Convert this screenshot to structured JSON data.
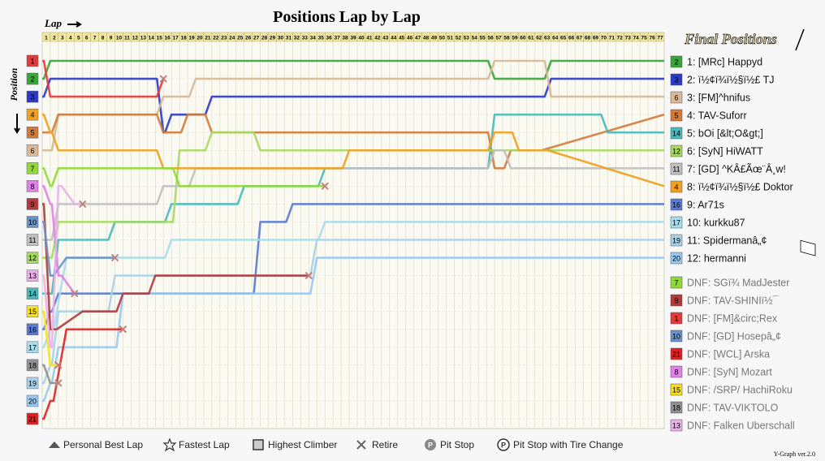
{
  "title": "Positions Lap by Lap",
  "axis": {
    "lap_label": "Lap",
    "position_label": "Position"
  },
  "final_header": "Final Positions",
  "version": "Y-Graph ver.2.0",
  "lap_ticks": [
    "1",
    "2",
    "3",
    "4",
    "5",
    "6",
    "7",
    "8",
    "9",
    "10",
    "11",
    "12",
    "13",
    "14",
    "15",
    "16",
    "17",
    "18",
    "19",
    "20",
    "21",
    "22",
    "23",
    "24",
    "25",
    "26",
    "27",
    "28",
    "29",
    "30",
    "31",
    "32",
    "33",
    "34",
    "35",
    "36",
    "37",
    "38",
    "39",
    "40",
    "41",
    "42",
    "43",
    "44",
    "45",
    "46",
    "47",
    "48",
    "49",
    "50",
    "51",
    "52",
    "53",
    "54",
    "55",
    "56",
    "57",
    "58",
    "59",
    "60",
    "61",
    "62",
    "63",
    "64",
    "65",
    "66",
    "67",
    "68",
    "69",
    "70",
    "71",
    "72",
    "73",
    "74",
    "75",
    "76",
    "77"
  ],
  "start_positions": [
    "1",
    "2",
    "3",
    "4",
    "5",
    "6",
    "7",
    "8",
    "9",
    "10",
    "11",
    "12",
    "13",
    "14",
    "15",
    "16",
    "17",
    "18",
    "19",
    "20",
    "21"
  ],
  "colors": {
    "c1": "#e03a3a",
    "c2": "#3aa33a",
    "c3": "#2b39c4",
    "c4": "#f0a020",
    "c5": "#d07a3a",
    "c6": "#d8b896",
    "c7": "#8fd838",
    "c8": "#e080e8",
    "c9": "#b03a3a",
    "c10": "#6a90c8",
    "c11": "#c0c0c0",
    "c12": "#a6d860",
    "c13": "#e8b0e8",
    "c14": "#48b8b8",
    "c15": "#f8e020",
    "c16": "#5a7ad0",
    "c17": "#a8dcea",
    "c18": "#909090",
    "c19": "#a8d0e8",
    "c20": "#98c8f0",
    "c21": "#e02020"
  },
  "final_positions": [
    {
      "grid": "2",
      "name": "1: [MRc] Happyd",
      "color": "c2"
    },
    {
      "grid": "3",
      "name": "2: ï½¢ï¾ï½§ï½£ TJ",
      "color": "c3"
    },
    {
      "grid": "6",
      "name": "3: [FM]^hnifus",
      "color": "c6"
    },
    {
      "grid": "5",
      "name": "4: TAV-Suforr",
      "color": "c5"
    },
    {
      "grid": "14",
      "name": "5: bOi [&lt;O&gt;]",
      "color": "c14"
    },
    {
      "grid": "12",
      "name": "6: [SyN] HiWATT",
      "color": "c12"
    },
    {
      "grid": "11",
      "name": "7: [GD] ^KÂ£Ãœ¨Â¸w!",
      "color": "c11"
    },
    {
      "grid": "4",
      "name": "8: ï½¢ï¾ï½§ï½£ Doktor",
      "color": "c4"
    },
    {
      "grid": "16",
      "name": "9: Ar71s",
      "color": "c16"
    },
    {
      "grid": "17",
      "name": "10: kurkku87",
      "color": "c17"
    },
    {
      "grid": "19",
      "name": "11: Spidermanâ„¢",
      "color": "c19"
    },
    {
      "grid": "20",
      "name": "12: hermanni",
      "color": "c20"
    }
  ],
  "dnf": [
    {
      "grid": "7",
      "name": "DNF: SGï¾ MadJester",
      "color": "c7"
    },
    {
      "grid": "9",
      "name": "DNF: TAV-SHINIï½¯",
      "color": "c9"
    },
    {
      "grid": "1",
      "name": "DNF: [FM]&circ;Rex",
      "color": "c1"
    },
    {
      "grid": "10",
      "name": "DNF: [GD] Hosepâ„¢",
      "color": "c10"
    },
    {
      "grid": "21",
      "name": "DNF: [WCL] Arska",
      "color": "c21"
    },
    {
      "grid": "8",
      "name": "DNF: [SyN] Mozart",
      "color": "c8"
    },
    {
      "grid": "15",
      "name": "DNF: /SRP/ HachiRoku",
      "color": "c15"
    },
    {
      "grid": "18",
      "name": "DNF: TAV-VIKTOLO",
      "color": "c18"
    },
    {
      "grid": "13",
      "name": "DNF: Falken Uberschall",
      "color": "c13"
    }
  ],
  "legend": [
    {
      "icon": "triangle-icon",
      "label": "Personal Best Lap"
    },
    {
      "icon": "star-icon",
      "label": "Fastest Lap"
    },
    {
      "icon": "square-icon",
      "label": "Highest Climber"
    },
    {
      "icon": "x-icon",
      "label": "Retire"
    },
    {
      "icon": "p-icon",
      "label": "Pit Stop"
    },
    {
      "icon": "p-ring-icon",
      "label": "Pit Stop with Tire Change"
    }
  ],
  "chart_data": {
    "type": "line",
    "title": "Positions Lap by Lap",
    "xlabel": "Lap",
    "ylabel": "Position",
    "xlim": [
      0,
      77
    ],
    "ylim": [
      1,
      21
    ],
    "grid": true,
    "series": [
      {
        "name": "[MRc] Happyd",
        "color": "c2",
        "points": [
          [
            0,
            2
          ],
          [
            1,
            1
          ],
          [
            55,
            1
          ],
          [
            56,
            2
          ],
          [
            62,
            2
          ],
          [
            63,
            1
          ],
          [
            77,
            1
          ]
        ]
      },
      {
        "name": "ï½¢ï¾ï½§ï½£ TJ",
        "color": "c3",
        "points": [
          [
            0,
            3
          ],
          [
            1,
            2
          ],
          [
            14,
            2
          ],
          [
            15,
            5
          ],
          [
            16,
            4
          ],
          [
            20,
            4
          ],
          [
            21,
            3
          ],
          [
            62,
            3
          ],
          [
            63,
            2
          ],
          [
            77,
            2
          ]
        ]
      },
      {
        "name": "[FM]^hnifus",
        "color": "c6",
        "points": [
          [
            0,
            6
          ],
          [
            1,
            6
          ],
          [
            2,
            4
          ],
          [
            14,
            4
          ],
          [
            15,
            3
          ],
          [
            18,
            3
          ],
          [
            19,
            2
          ],
          [
            55,
            2
          ],
          [
            56,
            1
          ],
          [
            62,
            1
          ],
          [
            63,
            3
          ],
          [
            77,
            3
          ]
        ]
      },
      {
        "name": "TAV-Suforr",
        "color": "c5",
        "points": [
          [
            0,
            5
          ],
          [
            1,
            5
          ],
          [
            2,
            4
          ],
          [
            14,
            4
          ],
          [
            15,
            5
          ],
          [
            17,
            5
          ],
          [
            18,
            4
          ],
          [
            20,
            4
          ],
          [
            21,
            5
          ],
          [
            55,
            5
          ],
          [
            56,
            7
          ],
          [
            57,
            7
          ],
          [
            58,
            6
          ],
          [
            77,
            4
          ]
        ]
      },
      {
        "name": "bOi [&lt;O&gt;]",
        "color": "c14",
        "points": [
          [
            0,
            14
          ],
          [
            1,
            14
          ],
          [
            2,
            11
          ],
          [
            8,
            11
          ],
          [
            9,
            10
          ],
          [
            15,
            10
          ],
          [
            16,
            9
          ],
          [
            24,
            9
          ],
          [
            25,
            8
          ],
          [
            34,
            8
          ],
          [
            35,
            7
          ],
          [
            55,
            7
          ],
          [
            56,
            4
          ],
          [
            69,
            4
          ],
          [
            70,
            5
          ],
          [
            77,
            5
          ]
        ]
      },
      {
        "name": "[SyN] HiWATT",
        "color": "c12",
        "points": [
          [
            0,
            12
          ],
          [
            1,
            12
          ],
          [
            2,
            10
          ],
          [
            16,
            10
          ],
          [
            17,
            6
          ],
          [
            20,
            6
          ],
          [
            21,
            5
          ],
          [
            26,
            5
          ],
          [
            27,
            6
          ],
          [
            77,
            6
          ]
        ]
      },
      {
        "name": "[GD] ^KÂ£Ãœ¨Â¸w!",
        "color": "c11",
        "points": [
          [
            0,
            11
          ],
          [
            1,
            11
          ],
          [
            2,
            9
          ],
          [
            14,
            9
          ],
          [
            15,
            8
          ],
          [
            18,
            8
          ],
          [
            19,
            7
          ],
          [
            55,
            7
          ],
          [
            56,
            6
          ],
          [
            57,
            6
          ],
          [
            58,
            7
          ],
          [
            77,
            7
          ]
        ]
      },
      {
        "name": "ï½¢ï¾ï½§ï½£ Doktor",
        "color": "c4",
        "points": [
          [
            0,
            4
          ],
          [
            1,
            5
          ],
          [
            2,
            6
          ],
          [
            14,
            6
          ],
          [
            15,
            7
          ],
          [
            37,
            7
          ],
          [
            38,
            6
          ],
          [
            55,
            6
          ],
          [
            56,
            5
          ],
          [
            58,
            5
          ],
          [
            59,
            6
          ],
          [
            77,
            8
          ]
        ]
      },
      {
        "name": "Ar71s",
        "color": "c16",
        "points": [
          [
            0,
            16
          ],
          [
            1,
            15
          ],
          [
            2,
            14
          ],
          [
            26,
            14
          ],
          [
            27,
            10
          ],
          [
            30,
            10
          ],
          [
            31,
            9
          ],
          [
            77,
            9
          ]
        ]
      },
      {
        "name": "kurkku87",
        "color": "c17",
        "points": [
          [
            0,
            17
          ],
          [
            1,
            16
          ],
          [
            3,
            12
          ],
          [
            15,
            12
          ],
          [
            16,
            11
          ],
          [
            34,
            11
          ],
          [
            35,
            10
          ],
          [
            77,
            10
          ]
        ]
      },
      {
        "name": "Spidermanâ„¢",
        "color": "c19",
        "points": [
          [
            0,
            19
          ],
          [
            1,
            18
          ],
          [
            2,
            15
          ],
          [
            8,
            15
          ],
          [
            9,
            13
          ],
          [
            33,
            13
          ],
          [
            34,
            11
          ],
          [
            77,
            11
          ]
        ]
      },
      {
        "name": "hermanni",
        "color": "c20",
        "points": [
          [
            0,
            20
          ],
          [
            1,
            19
          ],
          [
            2,
            17
          ],
          [
            9,
            17
          ],
          [
            10,
            14
          ],
          [
            33,
            14
          ],
          [
            34,
            12
          ],
          [
            77,
            12
          ]
        ]
      },
      {
        "name": "SGï¾ MadJester",
        "color": "c7",
        "points": [
          [
            0,
            7
          ],
          [
            1,
            8
          ],
          [
            2,
            7
          ],
          [
            16,
            7
          ],
          [
            17,
            8
          ],
          [
            35,
            8
          ]
        ]
      },
      {
        "name": "TAV-SHINIï½¯",
        "color": "c9",
        "points": [
          [
            0,
            9
          ],
          [
            1,
            16
          ],
          [
            5,
            15
          ],
          [
            9,
            15
          ],
          [
            10,
            14
          ],
          [
            13,
            14
          ],
          [
            14,
            13
          ],
          [
            33,
            13
          ]
        ]
      },
      {
        "name": "[FM]&circ;Rex",
        "color": "c1",
        "points": [
          [
            0,
            1
          ],
          [
            1,
            3
          ],
          [
            14,
            3
          ],
          [
            15,
            2
          ]
        ]
      },
      {
        "name": "[GD] Hosepâ„¢",
        "color": "c10",
        "points": [
          [
            0,
            10
          ],
          [
            1,
            13
          ],
          [
            3,
            12
          ],
          [
            9,
            12
          ]
        ]
      },
      {
        "name": "[WCL] Arska",
        "color": "c21",
        "points": [
          [
            0,
            21
          ],
          [
            1,
            20
          ],
          [
            3,
            16
          ],
          [
            10,
            16
          ]
        ]
      },
      {
        "name": "[SyN] Mozart",
        "color": "c8",
        "points": [
          [
            0,
            8
          ],
          [
            1,
            9
          ],
          [
            2,
            13
          ],
          [
            4,
            14
          ]
        ]
      },
      {
        "name": "/SRP/ HachiRoku",
        "color": "c15",
        "points": [
          [
            0,
            15
          ],
          [
            1,
            18
          ],
          [
            2,
            18
          ]
        ]
      },
      {
        "name": "TAV-VIKTOLO",
        "color": "c18",
        "points": [
          [
            0,
            18
          ],
          [
            1,
            19
          ],
          [
            2,
            19
          ]
        ]
      },
      {
        "name": "Falken Uberschall",
        "color": "c13",
        "points": [
          [
            0,
            13
          ],
          [
            1,
            17
          ],
          [
            2,
            8
          ],
          [
            4,
            9
          ],
          [
            5,
            9
          ]
        ]
      }
    ]
  }
}
